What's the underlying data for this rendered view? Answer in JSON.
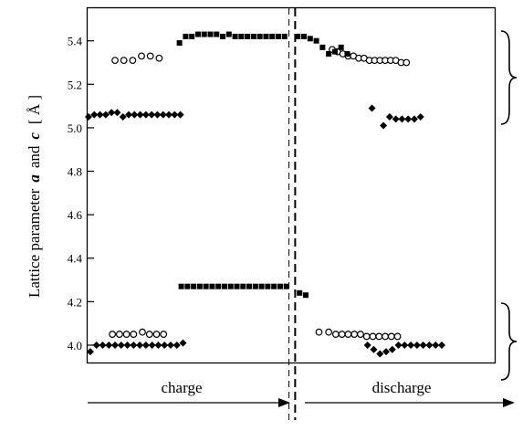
{
  "chart_data": {
    "type": "scatter",
    "title": "",
    "ylabel_prefix": "Lattice parameter",
    "ylabel_a": "a",
    "ylabel_and": "and",
    "ylabel_c": "c",
    "ylabel_unit": "[ Å ]",
    "ylim": [
      3.92,
      5.55
    ],
    "yticks": [
      "4.0",
      "4.2",
      "4.4",
      "4.6",
      "4.8",
      "5.0",
      "5.2",
      "5.4"
    ],
    "xlim": [
      0,
      46
    ],
    "x_annotations": [
      {
        "label": "charge",
        "direction": "right"
      },
      {
        "label": "discharge",
        "direction": "right"
      }
    ],
    "dividers_x": [
      22.7,
      23.4
    ],
    "series": [
      {
        "marker": "open-circle",
        "x": [
          3,
          4,
          5,
          6,
          7,
          8,
          27.6,
          28.2,
          28.8,
          29.4,
          30,
          30.6,
          31.2,
          31.8,
          32.4,
          33,
          33.6,
          34.2,
          34.8,
          35.4,
          36
        ],
        "y": [
          5.31,
          5.31,
          5.31,
          5.33,
          5.33,
          5.32,
          5.36,
          5.35,
          5.34,
          5.33,
          5.33,
          5.32,
          5.32,
          5.31,
          5.31,
          5.31,
          5.31,
          5.31,
          5.31,
          5.3,
          5.3
        ]
      },
      {
        "marker": "filled-square",
        "x": [
          10.3,
          11,
          11.7,
          12.4,
          13.1,
          13.8,
          14.5,
          15.2,
          15.9,
          16.6,
          17.3,
          18,
          18.7,
          19.4,
          20.1,
          20.8,
          21.5,
          22.2,
          23.7,
          24.4,
          25.1,
          25.8,
          26.5,
          27.2,
          27.9,
          28.6,
          29.3
        ],
        "y": [
          5.39,
          5.42,
          5.42,
          5.43,
          5.43,
          5.43,
          5.43,
          5.42,
          5.43,
          5.42,
          5.42,
          5.42,
          5.42,
          5.42,
          5.42,
          5.42,
          5.42,
          5.42,
          5.42,
          5.42,
          5.41,
          5.4,
          5.37,
          5.34,
          5.35,
          5.37,
          5.34
        ]
      },
      {
        "marker": "filled-diamond",
        "x": [
          0,
          0.65,
          1.3,
          1.95,
          2.6,
          3.25,
          3.9,
          4.55,
          5.2,
          5.85,
          6.5,
          7.15,
          7.8,
          8.45,
          9.1,
          9.75,
          10.4,
          32.1,
          33.4,
          34.1,
          34.8,
          35.5,
          36.2,
          36.9,
          37.6
        ],
        "y": [
          5.05,
          5.06,
          5.06,
          5.06,
          5.07,
          5.07,
          5.05,
          5.06,
          5.06,
          5.06,
          5.06,
          5.06,
          5.06,
          5.06,
          5.06,
          5.06,
          5.06,
          5.09,
          5.01,
          5.05,
          5.04,
          5.04,
          5.04,
          5.04,
          5.05
        ]
      },
      {
        "marker": "filled-square",
        "x": [
          10.5,
          11.2,
          11.9,
          12.6,
          13.3,
          14,
          14.7,
          15.4,
          16.1,
          16.8,
          17.5,
          18.2,
          18.9,
          19.6,
          20.3,
          21,
          21.7,
          22.4,
          23.9,
          24.6
        ],
        "y": [
          4.27,
          4.27,
          4.27,
          4.27,
          4.27,
          4.27,
          4.27,
          4.27,
          4.27,
          4.27,
          4.27,
          4.27,
          4.27,
          4.27,
          4.27,
          4.27,
          4.27,
          4.27,
          4.24,
          4.23
        ]
      },
      {
        "marker": "open-circle",
        "x": [
          2.7,
          3.5,
          4.3,
          5.1,
          6.1,
          6.9,
          7.7,
          8.5,
          26.1,
          27.2,
          28,
          28.7,
          29.4,
          30.1,
          30.8,
          31.5,
          32.2,
          32.9,
          33.6,
          34.3,
          35
        ],
        "y": [
          4.05,
          4.05,
          4.05,
          4.05,
          4.06,
          4.05,
          4.05,
          4.05,
          4.06,
          4.06,
          4.05,
          4.05,
          4.05,
          4.05,
          4.05,
          4.04,
          4.04,
          4.04,
          4.04,
          4.04,
          4.04
        ]
      },
      {
        "marker": "filled-diamond",
        "x": [
          0.2,
          0.9,
          1.6,
          2.3,
          3,
          3.7,
          4.4,
          5.1,
          5.8,
          6.5,
          7.2,
          7.9,
          8.6,
          9.3,
          10,
          10.7,
          31.6,
          32.3,
          33,
          33.7,
          34.4,
          35.1,
          35.8,
          36.5,
          37.2,
          37.9,
          38.6,
          39.3,
          40
        ],
        "y": [
          3.97,
          4.0,
          4.0,
          4.0,
          4.0,
          4.0,
          4.0,
          4.0,
          4.0,
          4.0,
          4.0,
          4.0,
          4.0,
          4.0,
          4.0,
          4.01,
          4.0,
          3.98,
          3.96,
          3.97,
          3.98,
          4.0,
          4.0,
          4.0,
          4.0,
          4.0,
          4.0,
          4.0,
          4.0
        ]
      }
    ]
  }
}
